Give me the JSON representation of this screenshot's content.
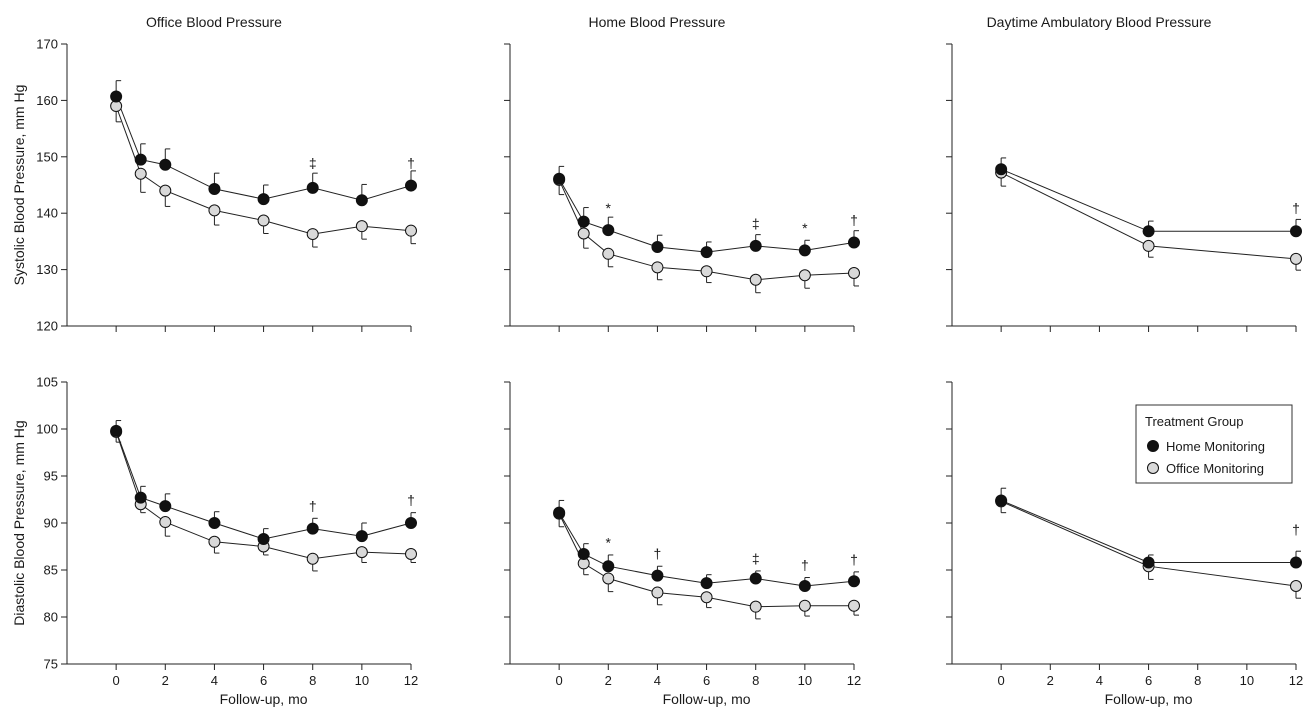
{
  "legend": {
    "title": "Treatment Group",
    "entries": [
      {
        "label": "Home Monitoring",
        "fill": "#111111"
      },
      {
        "label": "Office Monitoring",
        "fill": "#d9d9d9"
      }
    ]
  },
  "chart_data": [
    {
      "type": "line",
      "title": "Office Blood Pressure",
      "xlabel": "",
      "ylabel": "Systolic Blood Pressure, mm Hg",
      "xlim": [
        -2,
        12
      ],
      "xticks": [
        0,
        2,
        4,
        6,
        8,
        10,
        12
      ],
      "xticklabels": false,
      "ylim": [
        120,
        170
      ],
      "yticks": [
        120,
        130,
        140,
        150,
        160,
        170
      ],
      "yticklabels": true,
      "series": [
        {
          "name": "Home Monitoring",
          "x": [
            0,
            1,
            2,
            4,
            6,
            8,
            10,
            12
          ],
          "y": [
            160.7,
            149.5,
            148.6,
            144.3,
            142.5,
            144.5,
            142.3,
            144.9
          ],
          "err": [
            2.8,
            2.8,
            2.8,
            2.8,
            2.5,
            2.6,
            2.8,
            2.6
          ]
        },
        {
          "name": "Office Monitoring",
          "x": [
            0,
            1,
            2,
            4,
            6,
            8,
            10,
            12
          ],
          "y": [
            159.0,
            147.0,
            144.0,
            140.5,
            138.7,
            136.3,
            137.7,
            136.9
          ],
          "err": [
            2.8,
            3.3,
            2.8,
            2.6,
            2.3,
            2.3,
            2.3,
            2.3
          ]
        }
      ],
      "annotations": [
        {
          "x": 8,
          "text": "‡",
          "y": 148
        },
        {
          "x": 12,
          "text": "†",
          "y": 148
        }
      ]
    },
    {
      "type": "line",
      "title": "Home Blood Pressure",
      "xlabel": "",
      "ylabel": "",
      "xlim": [
        -2,
        12
      ],
      "xticks": [
        0,
        2,
        4,
        6,
        8,
        10,
        12
      ],
      "xticklabels": false,
      "ylim": [
        120,
        170
      ],
      "yticks": [
        120,
        130,
        140,
        150,
        160,
        170
      ],
      "yticklabels": false,
      "series": [
        {
          "name": "Home Monitoring",
          "x": [
            0,
            1,
            2,
            4,
            6,
            8,
            10,
            12
          ],
          "y": [
            146.1,
            138.5,
            137.0,
            134.0,
            133.1,
            134.2,
            133.4,
            134.8
          ],
          "err": [
            2.2,
            2.5,
            2.3,
            2.1,
            1.8,
            2.0,
            1.8,
            2.1
          ]
        },
        {
          "name": "Office Monitoring",
          "x": [
            0,
            1,
            2,
            4,
            6,
            8,
            10,
            12
          ],
          "y": [
            145.9,
            136.4,
            132.8,
            130.4,
            129.7,
            128.2,
            129.0,
            129.4
          ],
          "err": [
            2.6,
            2.6,
            2.3,
            2.2,
            2.0,
            2.3,
            2.3,
            2.3
          ]
        }
      ],
      "annotations": [
        {
          "x": 2,
          "text": "*",
          "y": 140
        },
        {
          "x": 8,
          "text": "‡",
          "y": 137.3
        },
        {
          "x": 10,
          "text": "*",
          "y": 136.5
        },
        {
          "x": 12,
          "text": "†",
          "y": 137.9
        }
      ]
    },
    {
      "type": "line",
      "title": "Daytime Ambulatory Blood Pressure",
      "xlabel": "",
      "ylabel": "",
      "xlim": [
        -2,
        12
      ],
      "xticks": [
        0,
        2,
        4,
        6,
        8,
        10,
        12
      ],
      "xticklabels": false,
      "ylim": [
        120,
        170
      ],
      "yticks": [
        120,
        130,
        140,
        150,
        160,
        170
      ],
      "yticklabels": false,
      "series": [
        {
          "name": "Home Monitoring",
          "x": [
            0,
            6,
            12
          ],
          "y": [
            147.8,
            136.8,
            136.8
          ],
          "err": [
            2.0,
            1.8,
            2.1
          ]
        },
        {
          "name": "Office Monitoring",
          "x": [
            0,
            6,
            12
          ],
          "y": [
            147.2,
            134.2,
            131.9
          ],
          "err": [
            2.4,
            2.0,
            2.0
          ]
        }
      ],
      "annotations": [
        {
          "x": 12,
          "text": "†",
          "y": 140
        }
      ]
    },
    {
      "type": "line",
      "title": "",
      "xlabel": "Follow-up, mo",
      "ylabel": "Diastolic Blood Pressure, mm Hg",
      "xlim": [
        -2,
        12
      ],
      "xticks": [
        0,
        2,
        4,
        6,
        8,
        10,
        12
      ],
      "xticklabels": true,
      "ylim": [
        75,
        105
      ],
      "yticks": [
        75,
        80,
        85,
        90,
        95,
        100,
        105
      ],
      "yticklabels": true,
      "series": [
        {
          "name": "Home Monitoring",
          "x": [
            0,
            1,
            2,
            4,
            6,
            8,
            10,
            12
          ],
          "y": [
            99.8,
            92.7,
            91.8,
            90.0,
            88.3,
            89.4,
            88.6,
            90.0
          ],
          "err": [
            1.1,
            1.2,
            1.3,
            1.2,
            1.1,
            1.1,
            1.4,
            1.1
          ]
        },
        {
          "name": "Office Monitoring",
          "x": [
            0,
            1,
            2,
            4,
            6,
            8,
            10,
            12
          ],
          "y": [
            99.7,
            92.0,
            90.1,
            88.0,
            87.5,
            86.2,
            86.9,
            86.7
          ],
          "err": [
            1.1,
            0.9,
            1.5,
            1.2,
            0.9,
            1.3,
            1.1,
            0.9
          ]
        }
      ],
      "annotations": [
        {
          "x": 8,
          "text": "†",
          "y": 91.3
        },
        {
          "x": 12,
          "text": "†",
          "y": 91.9
        }
      ]
    },
    {
      "type": "line",
      "title": "",
      "xlabel": "Follow-up, mo",
      "ylabel": "",
      "xlim": [
        -2,
        12
      ],
      "xticks": [
        0,
        2,
        4,
        6,
        8,
        10,
        12
      ],
      "xticklabels": true,
      "ylim": [
        75,
        105
      ],
      "yticks": [
        75,
        80,
        85,
        90,
        95,
        100,
        105
      ],
      "yticklabels": false,
      "series": [
        {
          "name": "Home Monitoring",
          "x": [
            0,
            1,
            2,
            4,
            6,
            8,
            10,
            12
          ],
          "y": [
            91.1,
            86.7,
            85.4,
            84.4,
            83.6,
            84.1,
            83.3,
            83.8
          ],
          "err": [
            1.3,
            1.1,
            1.2,
            1.0,
            0.9,
            0.8,
            0.9,
            1.0
          ]
        },
        {
          "name": "Office Monitoring",
          "x": [
            0,
            1,
            2,
            4,
            6,
            8,
            10,
            12
          ],
          "y": [
            91.0,
            85.7,
            84.1,
            82.6,
            82.1,
            81.1,
            81.2,
            81.2
          ],
          "err": [
            1.4,
            1.2,
            1.4,
            1.3,
            1.1,
            1.3,
            1.1,
            1.0
          ]
        }
      ],
      "annotations": [
        {
          "x": 2,
          "text": "*",
          "y": 87.4
        },
        {
          "x": 4,
          "text": "†",
          "y": 86.2
        },
        {
          "x": 8,
          "text": "‡",
          "y": 85.7
        },
        {
          "x": 10,
          "text": "†",
          "y": 85.0
        },
        {
          "x": 12,
          "text": "†",
          "y": 85.6
        }
      ]
    },
    {
      "type": "line",
      "title": "",
      "xlabel": "Follow-up, mo",
      "ylabel": "",
      "xlim": [
        -2,
        12
      ],
      "xticks": [
        0,
        2,
        4,
        6,
        8,
        10,
        12
      ],
      "xticklabels": true,
      "ylim": [
        75,
        105
      ],
      "yticks": [
        75,
        80,
        85,
        90,
        95,
        100,
        105
      ],
      "yticklabels": false,
      "series": [
        {
          "name": "Home Monitoring",
          "x": [
            0,
            6,
            12
          ],
          "y": [
            92.4,
            85.8,
            85.8
          ],
          "err": [
            1.3,
            0.8,
            1.2
          ]
        },
        {
          "name": "Office Monitoring",
          "x": [
            0,
            6,
            12
          ],
          "y": [
            92.3,
            85.4,
            83.3
          ],
          "err": [
            1.2,
            1.4,
            1.3
          ]
        }
      ],
      "annotations": [
        {
          "x": 12,
          "text": "†",
          "y": 88.8
        }
      ]
    }
  ]
}
